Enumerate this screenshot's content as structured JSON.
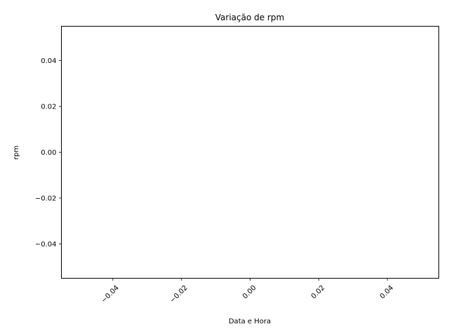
{
  "chart_data": {
    "type": "line",
    "title": "Variação de rpm",
    "xlabel": "Data e Hora",
    "ylabel": "rpm",
    "series": [
      {
        "x": [],
        "y": []
      }
    ],
    "xlim": [
      -0.055,
      0.055
    ],
    "ylim": [
      -0.055,
      0.055
    ],
    "xticks": [
      {
        "value": -0.04,
        "label": "−0.04"
      },
      {
        "value": -0.02,
        "label": "−0.02"
      },
      {
        "value": 0.0,
        "label": "0.00"
      },
      {
        "value": 0.02,
        "label": "0.02"
      },
      {
        "value": 0.04,
        "label": "0.04"
      }
    ],
    "yticks": [
      {
        "value": 0.04,
        "label": "0.04"
      },
      {
        "value": 0.02,
        "label": "0.02"
      },
      {
        "value": 0.0,
        "label": "0.00"
      },
      {
        "value": -0.02,
        "label": "−0.02"
      },
      {
        "value": -0.04,
        "label": "−0.04"
      }
    ],
    "xtick_rotation_deg": 45,
    "grid": false,
    "legend": "none"
  }
}
